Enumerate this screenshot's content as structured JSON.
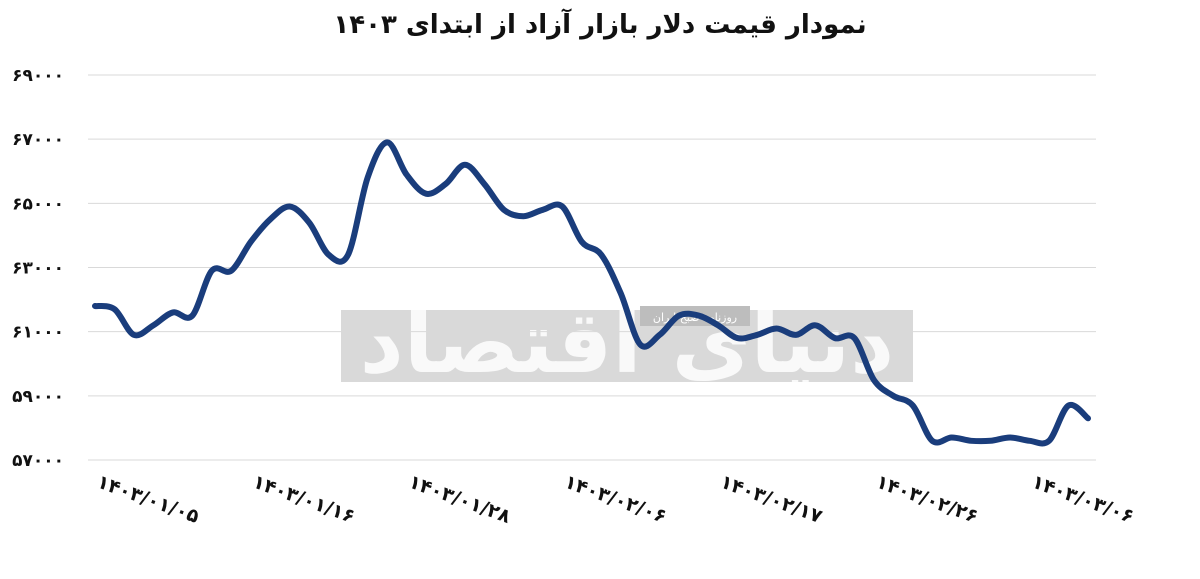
{
  "chart_data": {
    "type": "line",
    "title": "نمودار قیمت دلار بازار آزاد از ابتدای ۱۴۰۳",
    "xlabel": "",
    "ylabel": "",
    "ylim": [
      57000,
      69000
    ],
    "yticks": [
      57000,
      59000,
      61000,
      63000,
      65000,
      67000,
      69000
    ],
    "ytick_labels": [
      "۵۷۰۰۰",
      "۵۹۰۰۰",
      "۶۱۰۰۰",
      "۶۳۰۰۰",
      "۶۵۰۰۰",
      "۶۷۰۰۰",
      "۶۹۰۰۰"
    ],
    "xtick_labels": [
      "۱۴۰۳/۰۱/۰۵",
      "۱۴۰۳/۰۱/۱۶",
      "۱۴۰۳/۰۱/۲۸",
      "۱۴۰۳/۰۲/۰۶",
      "۱۴۰۳/۰۲/۱۷",
      "۱۴۰۳/۰۲/۲۶",
      "۱۴۰۳/۰۳/۰۶"
    ],
    "grid": true,
    "legend": "none",
    "color": "#1a3d7c",
    "series": [
      {
        "values": [
          61800,
          61700,
          60900,
          61200,
          61600,
          61500,
          62900,
          62900,
          63800,
          64500,
          64900,
          64400,
          63400,
          63400,
          65800,
          66900,
          65900,
          65300,
          65600,
          66200,
          65600,
          64800,
          64600,
          64800,
          64900,
          63800,
          63400,
          62200,
          60600,
          60900,
          61500,
          61500,
          61200,
          60800,
          60900,
          61100,
          60900,
          61200,
          60800,
          60800,
          59500,
          59000,
          58700,
          57600,
          57700,
          57600,
          57600,
          57700,
          57600,
          57600,
          58700,
          58300
        ]
      }
    ]
  },
  "watermark": {
    "main_text": "دنیای اقتصاد",
    "sub_text": "روزنامه صبح ایران"
  }
}
